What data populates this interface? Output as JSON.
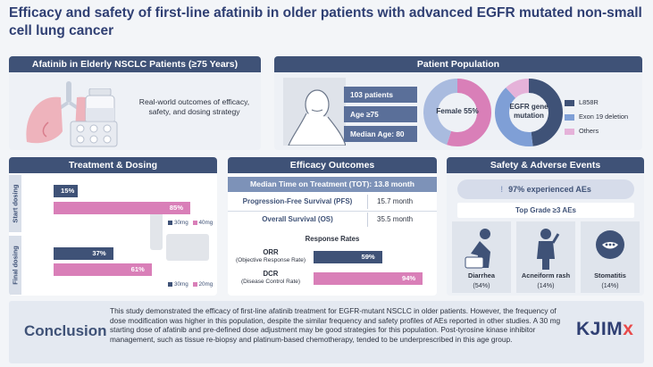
{
  "title": "Efficacy and safety of first-line afatinib in older patients with advanced EGFR mutated non-small cell lung cancer",
  "panel1": {
    "header": "Afatinib in Elderly NSCLC Patients (≥75 Years)",
    "text": "Real-world outcomes of efficacy, safety, and dosing strategy",
    "illustration_icons": [
      "lungs-icon",
      "pill-bottle-icon",
      "blister-pack-icon"
    ]
  },
  "panel2": {
    "header": "Patient Population",
    "stats": [
      "103 patients",
      "Age ≥75",
      "Median Age: 80"
    ],
    "female_label": "Female 55%",
    "female_share": 0.55,
    "egfr_label": "EGFR gene mutation",
    "egfr_shares": {
      "L858R": 0.48,
      "Exon 19 deletion": 0.4,
      "Others": 0.12
    },
    "legend": [
      "L858R",
      "Exon 19 deletion",
      "Others"
    ],
    "colors": {
      "female": "#d97fb8",
      "male": "#a9bbdf",
      "l858r": "#3f5277",
      "exon19": "#7f9fd6",
      "others": "#e5b2d9"
    }
  },
  "panel3": {
    "header": "Treatment & Dosing",
    "start_label": "Start dosing",
    "final_label": "Final dosing",
    "start": {
      "30mg": "15%",
      "40mg": "85%"
    },
    "final": {
      "30mg": "37%",
      "20mg": "61%"
    },
    "start_values": {
      "30mg": 15,
      "40mg": 85
    },
    "final_values": {
      "30mg": 37,
      "20mg": 61
    },
    "legend_start": [
      "30mg",
      "40mg"
    ],
    "legend_final": [
      "30mg",
      "20mg"
    ]
  },
  "panel4": {
    "header": "Efficacy Outcomes",
    "tot": "Median Time on Treatment (TOT): 13.8 month",
    "rows": [
      {
        "label": "Progression-Free Survival (PFS)",
        "value": "15.7 month"
      },
      {
        "label": "Overall Survival (OS)",
        "value": "35.5 month"
      }
    ],
    "response_title": "Response Rates",
    "orr": {
      "abbr": "ORR",
      "full": "(Objective Response Rate)",
      "value": "59%",
      "pct": 59
    },
    "dcr": {
      "abbr": "DCR",
      "full": "(Disease Control Rate)",
      "value": "94%",
      "pct": 94
    }
  },
  "panel5": {
    "header": "Safety & Adverse Events",
    "aes": "97% experienced AEs",
    "grade": "Top Grade ≥3 AEs",
    "items": [
      {
        "name": "Diarrhea",
        "pct": "(54%)"
      },
      {
        "name": "Acneiform rash",
        "pct": "(14%)"
      },
      {
        "name": "Stomatitis",
        "pct": "(14%)"
      }
    ]
  },
  "conclusion": {
    "title": "Conclusion",
    "text": "This study demonstrated the efficacy of first-line afatinib treatment for EGFR-mutant NSCLC in older patients. However, the frequency of dose modification was higher in this population, despite the similar frequency and safety profiles of AEs reported in other studies. A 30 mg starting dose of afatinib and pre-defined dose adjustment may be good strategies for this population. Post-tyrosine kinase inhibitor management, such as tissue re-biopsy and platinum-based chemotherapy, tended to be underprescribed in this age group."
  },
  "logo": {
    "main": "KJIM",
    "mark": "x"
  }
}
